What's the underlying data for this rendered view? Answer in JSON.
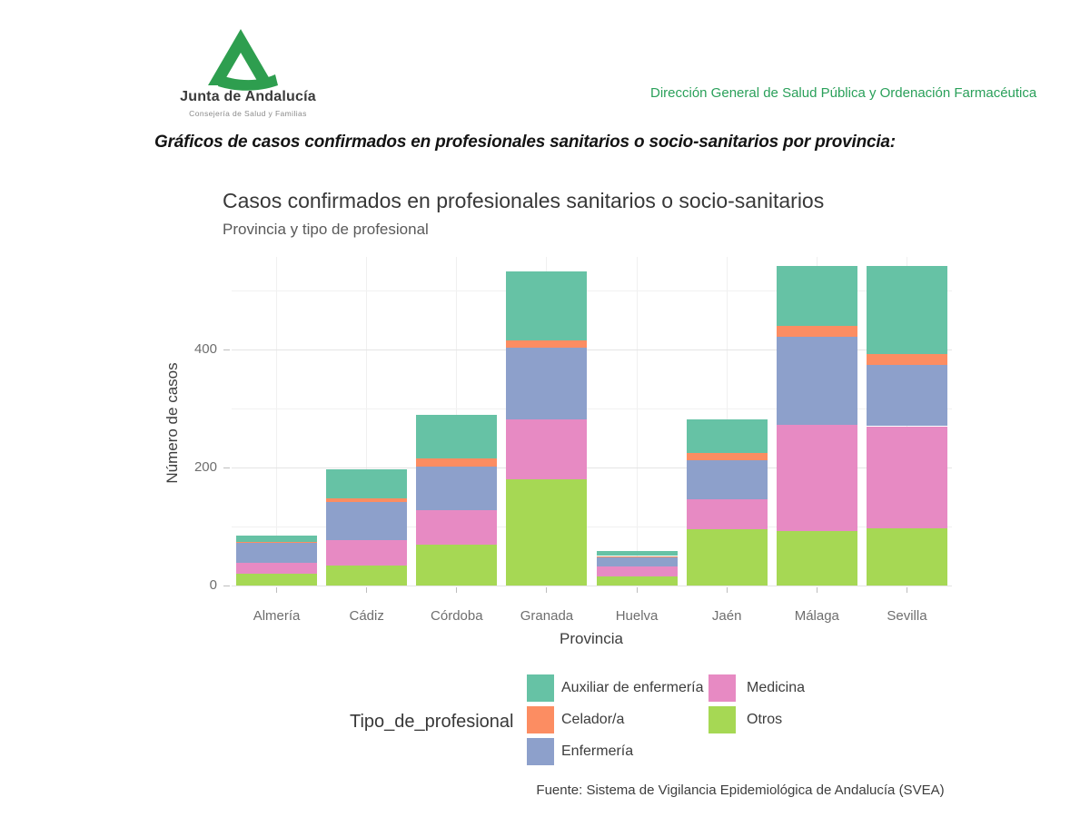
{
  "header": {
    "logo_org": "Junta de Andalucía",
    "logo_dept": "Consejería de Salud y Familias",
    "direction": "Dirección  General de Salud Pública y Ordenación Farmacéutica",
    "logo_green": "#2e9e4f"
  },
  "heading": "Gráficos de casos confirmados en profesionales sanitarios o socio-sanitarios por provincia:",
  "chart_data": {
    "type": "bar",
    "stacked": true,
    "title": "Casos confirmados en profesionales sanitarios o socio-sanitarios",
    "subtitle": "Provincia y tipo de profesional",
    "xlabel": "Provincia",
    "ylabel": "Número de casos",
    "legend_title": "Tipo_de_profesional",
    "source": "Fuente: Sistema de Vigilancia Epidemiológica de Andalucía (SVEA)",
    "categories": [
      "Almería",
      "Cádiz",
      "Córdoba",
      "Granada",
      "Huelva",
      "Jaén",
      "Málaga",
      "Sevilla"
    ],
    "yticks": [
      0,
      200,
      400
    ],
    "yticks_minor": [
      100,
      300,
      500
    ],
    "ylim": [
      0,
      557
    ],
    "grid": true,
    "legend_position": "bottom",
    "series": [
      {
        "name": "Otros",
        "color": "#A6D854",
        "values": [
          20,
          34,
          69,
          180,
          15,
          96,
          92,
          97
        ]
      },
      {
        "name": "Medicina",
        "color": "#E78AC3",
        "values": [
          18,
          43,
          59,
          101,
          18,
          50,
          180,
          173
        ]
      },
      {
        "name": "Enfermería",
        "color": "#8DA0CB",
        "values": [
          34,
          65,
          74,
          122,
          15,
          67,
          150,
          104
        ]
      },
      {
        "name": "Celador/a",
        "color": "#FC8D62",
        "values": [
          2,
          5,
          13,
          12,
          2,
          11,
          18,
          18
        ]
      },
      {
        "name": "Auxiliar de enfermería",
        "color": "#66C2A5",
        "values": [
          10,
          50,
          74,
          118,
          9,
          58,
          101,
          149
        ]
      }
    ],
    "legend_order": [
      "Auxiliar de enfermería",
      "Celador/a",
      "Enfermería",
      "Medicina",
      "Otros"
    ]
  }
}
